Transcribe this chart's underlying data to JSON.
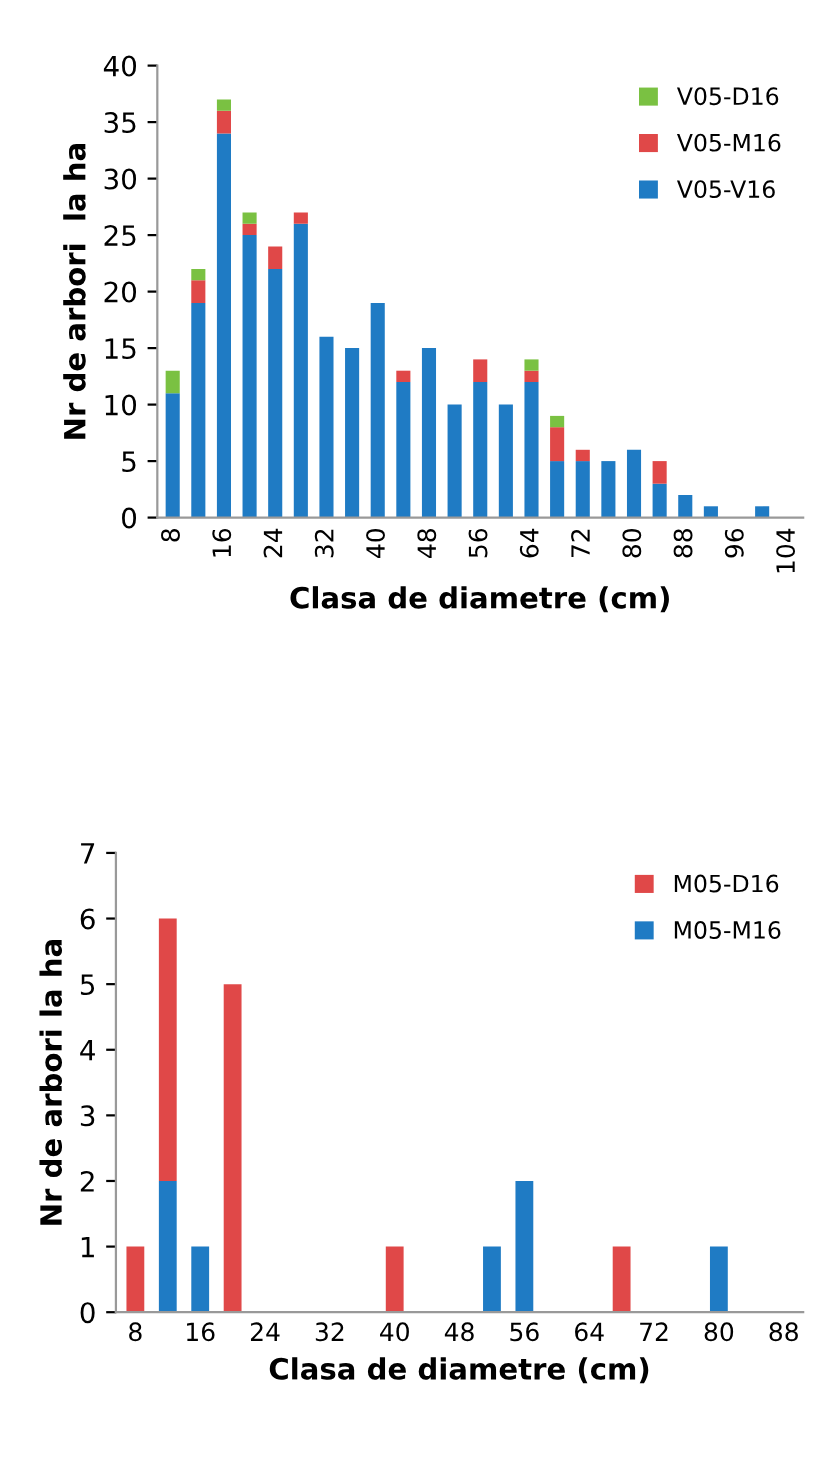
{
  "chart_data": [
    {
      "type": "bar",
      "stacked": true,
      "xlabel": "Clasa de diametre (cm)",
      "ylabel": "Nr de arbori  la ha",
      "categories": [
        "8",
        null,
        "16",
        null,
        "24",
        null,
        "32",
        null,
        "40",
        null,
        "48",
        null,
        "56",
        null,
        "64",
        null,
        "72",
        null,
        "80",
        null,
        "88",
        null,
        "96",
        null,
        "104"
      ],
      "series": [
        {
          "name": "V05-V16",
          "color": "#1f7bc4",
          "values": [
            11,
            19,
            34,
            25,
            22,
            26,
            16,
            15,
            19,
            12,
            15,
            10,
            12,
            10,
            12,
            5,
            5,
            5,
            6,
            3,
            2,
            1,
            0,
            1,
            0
          ]
        },
        {
          "name": "V05-M16",
          "color": "#e04848",
          "values": [
            0,
            2,
            2,
            1,
            2,
            1,
            0,
            0,
            0,
            1,
            0,
            0,
            2,
            0,
            1,
            3,
            1,
            0,
            0,
            2,
            0,
            0,
            0,
            0,
            0
          ]
        },
        {
          "name": "V05-D16",
          "color": "#7ac142",
          "values": [
            2,
            1,
            1,
            1,
            0,
            0,
            0,
            0,
            0,
            0,
            0,
            0,
            0,
            0,
            1,
            1,
            0,
            0,
            0,
            0,
            0,
            0,
            0,
            0,
            0
          ]
        }
      ],
      "ylim": [
        0,
        40
      ],
      "yticks": [
        0,
        5,
        10,
        15,
        20,
        25,
        30,
        35,
        40
      ],
      "legend": "top right",
      "grid": false
    },
    {
      "type": "bar",
      "stacked": true,
      "xlabel": "Clasa de diametre (cm)",
      "ylabel": "Nr de arbori la ha",
      "categories": [
        "8",
        null,
        "16",
        null,
        "24",
        null,
        "32",
        null,
        "40",
        null,
        "48",
        null,
        "56",
        null,
        "64",
        null,
        "72",
        null,
        "80",
        null,
        "88"
      ],
      "series": [
        {
          "name": "M05-M16",
          "color": "#1f7bc4",
          "values": [
            0,
            2,
            1,
            0,
            0,
            0,
            0,
            0,
            0,
            0,
            0,
            1,
            2,
            0,
            0,
            0,
            0,
            0,
            1,
            0,
            0
          ]
        },
        {
          "name": "M05-D16",
          "color": "#e04848",
          "values": [
            1,
            4,
            0,
            5,
            0,
            0,
            0,
            0,
            1,
            0,
            0,
            0,
            0,
            0,
            0,
            1,
            0,
            0,
            0,
            0,
            0
          ]
        }
      ],
      "ylim": [
        0,
        7
      ],
      "yticks": [
        0,
        1,
        2,
        3,
        4,
        5,
        6,
        7
      ],
      "legend": "top right",
      "grid": false
    }
  ]
}
